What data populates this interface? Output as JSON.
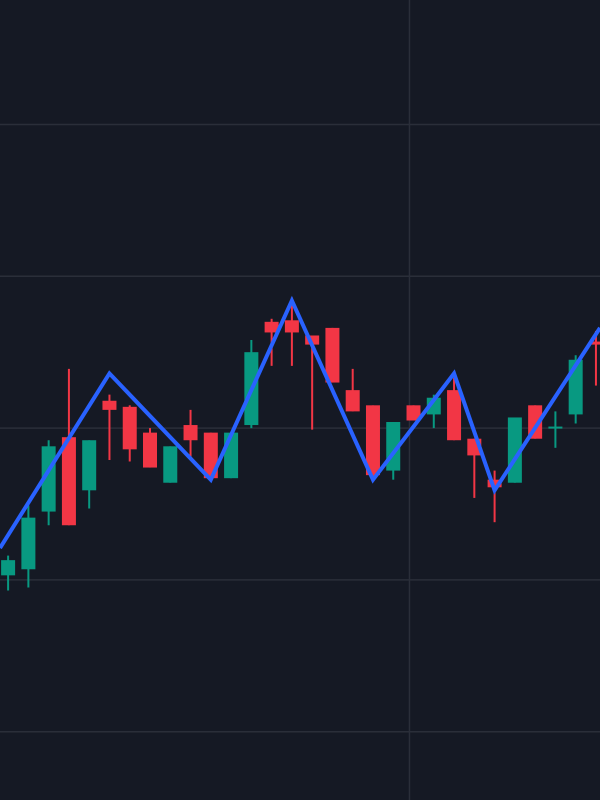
{
  "chart_data": {
    "type": "candlestick",
    "categories": [
      null,
      null,
      null,
      null,
      null,
      null,
      null,
      null,
      null,
      null,
      null,
      null,
      null,
      null,
      null,
      null,
      null,
      null,
      null,
      null,
      null,
      null,
      null,
      null,
      null,
      null,
      null,
      null,
      null,
      null
    ],
    "open": [
      10.3,
      10.7,
      14.5,
      19.4,
      15.9,
      21.8,
      21.4,
      19.7,
      16.4,
      20.2,
      19.7,
      16.7,
      20.2,
      27.0,
      27.1,
      26.1,
      26.6,
      22.5,
      21.5,
      17.2,
      21.5,
      20.9,
      22.5,
      19.3,
      16.6,
      16.4,
      21.5,
      20.0,
      20.9,
      25.7
    ],
    "high": [
      11.6,
      14.9,
      19.2,
      23.9,
      19.2,
      22.2,
      21.5,
      20.0,
      18.8,
      21.2,
      19.7,
      19.7,
      25.8,
      27.2,
      28.6,
      26.1,
      26.6,
      23.9,
      21.5,
      20.4,
      21.5,
      22.2,
      23.3,
      19.3,
      17.2,
      20.7,
      21.5,
      21.1,
      24.8,
      26.4
    ],
    "low": [
      9.3,
      9.5,
      13.6,
      13.6,
      14.7,
      17.9,
      17.8,
      17.4,
      16.4,
      17.9,
      16.6,
      16.7,
      20.0,
      24.1,
      24.1,
      19.9,
      23.0,
      21.1,
      16.7,
      16.6,
      20.5,
      20.0,
      19.2,
      15.4,
      13.8,
      16.4,
      19.3,
      18.7,
      20.3,
      22.8
    ],
    "close": [
      11.3,
      14.1,
      18.8,
      13.6,
      19.2,
      21.2,
      18.6,
      17.4,
      18.8,
      19.2,
      16.7,
      19.7,
      25.0,
      26.3,
      26.3,
      25.5,
      23.0,
      21.1,
      16.9,
      20.4,
      20.5,
      22.0,
      19.2,
      18.2,
      16.1,
      20.7,
      19.3,
      20.1,
      24.5,
      25.5
    ],
    "up_color": "#089981",
    "down_color": "#f23645",
    "overlay": {
      "type": "line",
      "x": [
        -0.4,
        5,
        10,
        14,
        18,
        22,
        24,
        29.2
      ],
      "values": [
        12.1,
        23.6,
        16.6,
        28.4,
        16.6,
        23.6,
        15.9,
        26.6
      ],
      "color": "#2962ff"
    },
    "xlim": [
      -0.4,
      29.2
    ],
    "xticks": [
      19.8
    ],
    "ylim": [
      -4.5,
      48.2
    ],
    "yticks": [
      0,
      10,
      20,
      30,
      40
    ],
    "grid": true,
    "grid_color": "#2a2e39",
    "background": "#151924"
  }
}
